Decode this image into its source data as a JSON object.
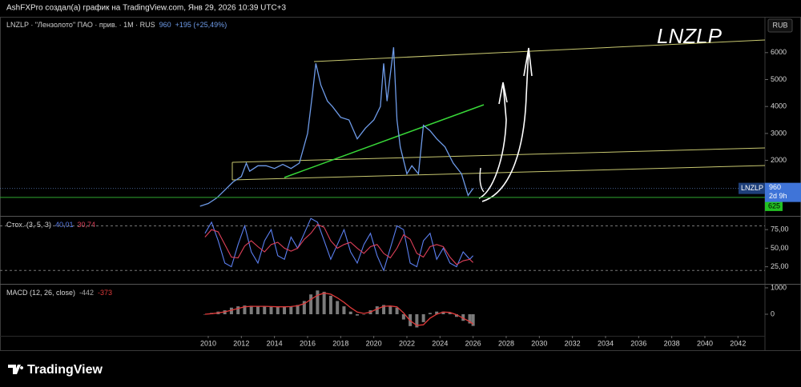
{
  "header": "AshFXPro создал(а) график на TradingView.com, Янв 29, 2026 10:39 UTC+3",
  "footer": "TradingView",
  "chart_data": [
    {
      "type": "line",
      "legend": {
        "symbol": "LNZLP · \"Лензолото\" ПАО · прив. · 1M · RUS",
        "last": 960,
        "change": "+195 (+25,49%)"
      },
      "annotation": "LNZLP",
      "currency": "RUB",
      "color": "#6e9be8",
      "x": [
        2009.5,
        2010,
        2010.5,
        2011,
        2011.5,
        2012,
        2012.3,
        2012.5,
        2013,
        2013.5,
        2014,
        2014.5,
        2015,
        2015.5,
        2016,
        2016.3,
        2016.5,
        2016.8,
        2017.2,
        2017.5,
        2018,
        2018.5,
        2019,
        2019.5,
        2020,
        2020.4,
        2020.6,
        2020.8,
        2021.2,
        2021.4,
        2021.6,
        2022,
        2022.3,
        2022.7,
        2023,
        2023.4,
        2023.8,
        2024.3,
        2024.8,
        2025.3,
        2025.7,
        2026
      ],
      "values": [
        300,
        400,
        600,
        900,
        1200,
        1400,
        1900,
        1600,
        1800,
        1800,
        1700,
        1850,
        1700,
        1900,
        3000,
        4500,
        5600,
        4800,
        4200,
        4000,
        3600,
        3500,
        2800,
        3200,
        3500,
        4000,
        5600,
        4200,
        6200,
        3500,
        2500,
        1500,
        1800,
        1500,
        3300,
        3100,
        2800,
        2500,
        1900,
        1500,
        700,
        960
      ],
      "ylim": [
        -60,
        7300
      ],
      "yticks": [
        2000,
        3000,
        4000,
        5000,
        6000
      ],
      "price_label": {
        "symbol": "LNZLP",
        "value": 960,
        "countdown": "2d 9h"
      },
      "level": 625
    },
    {
      "type": "line",
      "title": "Стох. (3, 5, 3)",
      "legend_values": [
        "40,01",
        "30,74"
      ],
      "x": [
        2009.8,
        2010.2,
        2010.6,
        2011.0,
        2011.4,
        2011.8,
        2012.2,
        2012.6,
        2013.0,
        2013.4,
        2013.8,
        2014.2,
        2014.6,
        2015.0,
        2015.4,
        2015.8,
        2016.2,
        2016.6,
        2017.0,
        2017.4,
        2017.8,
        2018.2,
        2018.6,
        2019.0,
        2019.4,
        2019.8,
        2020.2,
        2020.6,
        2021.0,
        2021.4,
        2021.8,
        2022.2,
        2022.6,
        2023.0,
        2023.4,
        2023.8,
        2024.2,
        2024.6,
        2025.0,
        2025.4,
        2025.8,
        2026.0
      ],
      "series": [
        {
          "color": "#5b7ff0",
          "values": [
            70,
            85,
            60,
            30,
            25,
            55,
            80,
            45,
            30,
            60,
            75,
            40,
            35,
            65,
            50,
            70,
            90,
            85,
            60,
            35,
            55,
            75,
            45,
            30,
            55,
            70,
            40,
            20,
            50,
            80,
            75,
            30,
            25,
            60,
            70,
            35,
            50,
            30,
            25,
            45,
            35,
            40.01
          ]
        },
        {
          "color": "#e0405a",
          "values": [
            65,
            75,
            72,
            55,
            38,
            37,
            53,
            60,
            52,
            45,
            55,
            58,
            50,
            46,
            50,
            62,
            70,
            82,
            78,
            60,
            50,
            55,
            58,
            50,
            43,
            52,
            55,
            43,
            37,
            50,
            68,
            62,
            43,
            38,
            52,
            55,
            52,
            38,
            28,
            33,
            35,
            30.74
          ]
        }
      ],
      "ylim": [
        2,
        92.4
      ],
      "yticks": [
        {
          "value": 25,
          "label": "25,00"
        },
        {
          "value": 50,
          "label": "50,00"
        },
        {
          "value": 75,
          "label": "75,00"
        }
      ],
      "bands": [
        20,
        80
      ]
    },
    {
      "type": "macd",
      "title": "MACD (12, 26, close)",
      "legend_values": [
        "-442",
        "-373"
      ],
      "x": [
        2009.8,
        2010.2,
        2010.6,
        2011.0,
        2011.4,
        2011.8,
        2012.2,
        2012.6,
        2013.0,
        2013.4,
        2013.8,
        2014.2,
        2014.6,
        2015.0,
        2015.4,
        2015.8,
        2016.2,
        2016.6,
        2017.0,
        2017.4,
        2017.8,
        2018.2,
        2018.6,
        2019.0,
        2019.4,
        2019.8,
        2020.2,
        2020.6,
        2021.0,
        2021.4,
        2021.8,
        2022.2,
        2022.6,
        2023.0,
        2023.4,
        2023.8,
        2024.2,
        2024.6,
        2025.0,
        2025.4,
        2025.8,
        2026.0
      ],
      "series": [
        {
          "kind": "bar",
          "color": "#9a9a9a",
          "values": [
            0,
            50,
            100,
            150,
            250,
            300,
            330,
            320,
            300,
            300,
            280,
            270,
            280,
            300,
            350,
            500,
            750,
            900,
            850,
            700,
            500,
            300,
            100,
            -50,
            0,
            150,
            300,
            350,
            300,
            250,
            -200,
            -450,
            -500,
            -300,
            50,
            100,
            100,
            50,
            -100,
            -250,
            -350,
            -442
          ]
        },
        {
          "kind": "line",
          "color": "#e03a3a",
          "values": [
            0,
            20,
            50,
            90,
            150,
            220,
            280,
            300,
            300,
            300,
            290,
            280,
            280,
            290,
            320,
            400,
            560,
            720,
            800,
            760,
            620,
            450,
            250,
            80,
            30,
            80,
            200,
            300,
            310,
            280,
            50,
            -250,
            -420,
            -400,
            -150,
            0,
            80,
            70,
            -20,
            -150,
            -280,
            -373
          ]
        }
      ],
      "ylim": [
        -818,
        1120
      ],
      "yticks": [
        0,
        1000
      ],
      "xlim": [
        1997.42,
        2043.63
      ],
      "xticks": [
        2010,
        2012,
        2014,
        2016,
        2018,
        2020,
        2022,
        2024,
        2026,
        2028,
        2030,
        2032,
        2034,
        2036,
        2038,
        2040,
        2042
      ]
    }
  ]
}
